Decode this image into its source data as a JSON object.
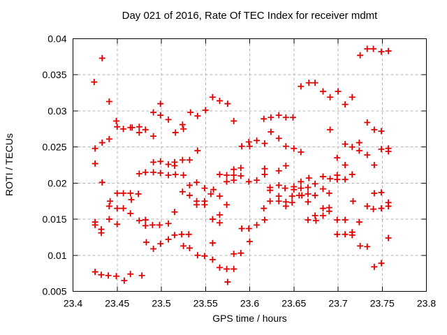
{
  "chart_data": {
    "type": "scatter",
    "title": "Day 021 of 2016, Rate Of TEC Index for receiver mdmt",
    "xlabel": "GPS time / hours",
    "ylabel": "ROTI / TECUs",
    "xlim": [
      23.4,
      23.8
    ],
    "ylim": [
      0.005,
      0.04
    ],
    "xticks": [
      {
        "v": 23.4,
        "label": "23.4"
      },
      {
        "v": 23.45,
        "label": "23.45"
      },
      {
        "v": 23.5,
        "label": "23.5"
      },
      {
        "v": 23.55,
        "label": "23.55"
      },
      {
        "v": 23.6,
        "label": "23.6"
      },
      {
        "v": 23.65,
        "label": "23.65"
      },
      {
        "v": 23.7,
        "label": "23.7"
      },
      {
        "v": 23.75,
        "label": "23.75"
      },
      {
        "v": 23.8,
        "label": "23.8"
      }
    ],
    "yticks": [
      {
        "v": 0.005,
        "label": "0.005"
      },
      {
        "v": 0.01,
        "label": "0.01"
      },
      {
        "v": 0.015,
        "label": "0.015"
      },
      {
        "v": 0.02,
        "label": "0.02"
      },
      {
        "v": 0.025,
        "label": "0.025"
      },
      {
        "v": 0.03,
        "label": "0.03"
      },
      {
        "v": 0.035,
        "label": "0.035"
      },
      {
        "v": 0.04,
        "label": "0.04"
      }
    ],
    "grid": true,
    "legend": false,
    "marker": {
      "shape": "plus",
      "color": "#e00000",
      "size": 9
    },
    "points": [
      [
        23.433,
        0.0373
      ],
      [
        23.424,
        0.034
      ],
      [
        23.441,
        0.0313
      ],
      [
        23.499,
        0.031
      ],
      [
        23.491,
        0.0298
      ],
      [
        23.499,
        0.0294
      ],
      [
        23.449,
        0.0286
      ],
      [
        23.508,
        0.0288
      ],
      [
        23.533,
        0.0298
      ],
      [
        23.541,
        0.0293
      ],
      [
        23.55,
        0.0301
      ],
      [
        23.558,
        0.0319
      ],
      [
        23.566,
        0.0314
      ],
      [
        23.575,
        0.031
      ],
      [
        23.582,
        0.0286
      ],
      [
        23.658,
        0.0334
      ],
      [
        23.667,
        0.0339
      ],
      [
        23.674,
        0.0339
      ],
      [
        23.683,
        0.0327
      ],
      [
        23.691,
        0.0319
      ],
      [
        23.7,
        0.0327
      ],
      [
        23.616,
        0.0289
      ],
      [
        23.624,
        0.0291
      ],
      [
        23.633,
        0.0294
      ],
      [
        23.641,
        0.0291
      ],
      [
        23.649,
        0.0291
      ],
      [
        23.725,
        0.0377
      ],
      [
        23.733,
        0.0386
      ],
      [
        23.74,
        0.0386
      ],
      [
        23.749,
        0.0382
      ],
      [
        23.757,
        0.0383
      ],
      [
        23.716,
        0.0319
      ],
      [
        23.708,
        0.0309
      ],
      [
        23.45,
        0.0278
      ],
      [
        23.457,
        0.0275
      ],
      [
        23.465,
        0.0277
      ],
      [
        23.467,
        0.0277
      ],
      [
        23.475,
        0.0278
      ],
      [
        23.475,
        0.027
      ],
      [
        23.482,
        0.0274
      ],
      [
        23.491,
        0.0265
      ],
      [
        23.441,
        0.0261
      ],
      [
        23.433,
        0.0256
      ],
      [
        23.425,
        0.0248
      ],
      [
        23.425,
        0.0227
      ],
      [
        23.491,
        0.0229
      ],
      [
        23.499,
        0.023
      ],
      [
        23.475,
        0.0213
      ],
      [
        23.482,
        0.0215
      ],
      [
        23.491,
        0.0215
      ],
      [
        23.499,
        0.0214
      ],
      [
        23.433,
        0.0201
      ],
      [
        23.45,
        0.0186
      ],
      [
        23.457,
        0.0186
      ],
      [
        23.465,
        0.0186
      ],
      [
        23.474,
        0.0185
      ],
      [
        23.466,
        0.0177
      ],
      [
        23.442,
        0.0175
      ],
      [
        23.441,
        0.0168
      ],
      [
        23.457,
        0.0165
      ],
      [
        23.524,
        0.0281
      ],
      [
        23.516,
        0.027
      ],
      [
        23.525,
        0.0275
      ],
      [
        23.591,
        0.0251
      ],
      [
        23.599,
        0.0257
      ],
      [
        23.6,
        0.0251
      ],
      [
        23.541,
        0.0245
      ],
      [
        23.508,
        0.0226
      ],
      [
        23.515,
        0.0229
      ],
      [
        23.515,
        0.0224
      ],
      [
        23.524,
        0.0232
      ],
      [
        23.532,
        0.0232
      ],
      [
        23.508,
        0.0211
      ],
      [
        23.516,
        0.0212
      ],
      [
        23.525,
        0.0211
      ],
      [
        23.566,
        0.0212
      ],
      [
        23.574,
        0.0211
      ],
      [
        23.582,
        0.0219
      ],
      [
        23.582,
        0.0211
      ],
      [
        23.59,
        0.0221
      ],
      [
        23.59,
        0.021
      ],
      [
        23.574,
        0.0202
      ],
      [
        23.582,
        0.0204
      ],
      [
        23.599,
        0.0202
      ],
      [
        23.532,
        0.0197
      ],
      [
        23.54,
        0.0201
      ],
      [
        23.549,
        0.0193
      ],
      [
        23.559,
        0.0191
      ],
      [
        23.524,
        0.0188
      ],
      [
        23.556,
        0.0185
      ],
      [
        23.532,
        0.0183
      ],
      [
        23.566,
        0.0182
      ],
      [
        23.54,
        0.0175
      ],
      [
        23.54,
        0.017
      ],
      [
        23.549,
        0.0175
      ],
      [
        23.549,
        0.017
      ],
      [
        23.574,
        0.017
      ],
      [
        23.624,
        0.0271
      ],
      [
        23.633,
        0.0262
      ],
      [
        23.691,
        0.0274
      ],
      [
        23.608,
        0.0259
      ],
      [
        23.617,
        0.0255
      ],
      [
        23.641,
        0.0251
      ],
      [
        23.65,
        0.0248
      ],
      [
        23.658,
        0.0243
      ],
      [
        23.699,
        0.0235
      ],
      [
        23.641,
        0.0224
      ],
      [
        23.617,
        0.022
      ],
      [
        23.633,
        0.0217
      ],
      [
        23.617,
        0.0212
      ],
      [
        23.683,
        0.0209
      ],
      [
        23.691,
        0.0206
      ],
      [
        23.699,
        0.0211
      ],
      [
        23.699,
        0.0205
      ],
      [
        23.608,
        0.0204
      ],
      [
        23.633,
        0.0197
      ],
      [
        23.658,
        0.0202
      ],
      [
        23.667,
        0.0207
      ],
      [
        23.674,
        0.0199
      ],
      [
        23.623,
        0.0194
      ],
      [
        23.623,
        0.019
      ],
      [
        23.64,
        0.0193
      ],
      [
        23.65,
        0.0195
      ],
      [
        23.65,
        0.0191
      ],
      [
        23.658,
        0.0193
      ],
      [
        23.666,
        0.0194
      ],
      [
        23.683,
        0.0192
      ],
      [
        23.69,
        0.0186
      ],
      [
        23.648,
        0.0182
      ],
      [
        23.656,
        0.0183
      ],
      [
        23.659,
        0.0183
      ],
      [
        23.666,
        0.0185
      ],
      [
        23.674,
        0.0183
      ],
      [
        23.633,
        0.0182
      ],
      [
        23.623,
        0.0175
      ],
      [
        23.633,
        0.0175
      ],
      [
        23.641,
        0.0174
      ],
      [
        23.648,
        0.0173
      ],
      [
        23.641,
        0.0168
      ],
      [
        23.666,
        0.0174
      ],
      [
        23.733,
        0.0284
      ],
      [
        23.741,
        0.0274
      ],
      [
        23.749,
        0.0272
      ],
      [
        23.708,
        0.0254
      ],
      [
        23.716,
        0.025
      ],
      [
        23.724,
        0.0256
      ],
      [
        23.724,
        0.0245
      ],
      [
        23.733,
        0.0239
      ],
      [
        23.749,
        0.0247
      ],
      [
        23.757,
        0.0248
      ],
      [
        23.757,
        0.0244
      ],
      [
        23.708,
        0.0225
      ],
      [
        23.741,
        0.0225
      ],
      [
        23.716,
        0.0212
      ],
      [
        23.708,
        0.0205
      ],
      [
        23.741,
        0.0186
      ],
      [
        23.749,
        0.0187
      ],
      [
        23.717,
        0.0175
      ],
      [
        23.757,
        0.0173
      ],
      [
        23.757,
        0.0168
      ],
      [
        23.45,
        0.0165
      ],
      [
        23.465,
        0.0158
      ],
      [
        23.425,
        0.0146
      ],
      [
        23.425,
        0.0142
      ],
      [
        23.441,
        0.015
      ],
      [
        23.432,
        0.0136
      ],
      [
        23.432,
        0.0131
      ],
      [
        23.45,
        0.0143
      ],
      [
        23.475,
        0.0148
      ],
      [
        23.482,
        0.0149
      ],
      [
        23.482,
        0.0141
      ],
      [
        23.49,
        0.0142
      ],
      [
        23.498,
        0.0142
      ],
      [
        23.483,
        0.0118
      ],
      [
        23.491,
        0.0109
      ],
      [
        23.499,
        0.0116
      ],
      [
        23.425,
        0.0077
      ],
      [
        23.432,
        0.0073
      ],
      [
        23.44,
        0.0072
      ],
      [
        23.449,
        0.0071
      ],
      [
        23.458,
        0.0065
      ],
      [
        23.465,
        0.0074
      ],
      [
        23.478,
        0.0072
      ],
      [
        23.515,
        0.016
      ],
      [
        23.508,
        0.0144
      ],
      [
        23.566,
        0.0156
      ],
      [
        23.558,
        0.015
      ],
      [
        23.566,
        0.0145
      ],
      [
        23.508,
        0.0122
      ],
      [
        23.515,
        0.0128
      ],
      [
        23.523,
        0.0129
      ],
      [
        23.531,
        0.0129
      ],
      [
        23.525,
        0.0113
      ],
      [
        23.532,
        0.011
      ],
      [
        23.558,
        0.0117
      ],
      [
        23.541,
        0.01
      ],
      [
        23.549,
        0.0099
      ],
      [
        23.558,
        0.0094
      ],
      [
        23.582,
        0.0102
      ],
      [
        23.59,
        0.0103
      ],
      [
        23.566,
        0.0083
      ],
      [
        23.574,
        0.0081
      ],
      [
        23.582,
        0.0081
      ],
      [
        23.575,
        0.0063
      ],
      [
        23.591,
        0.0137
      ],
      [
        23.599,
        0.0137
      ],
      [
        23.6,
        0.0119
      ],
      [
        23.616,
        0.0165
      ],
      [
        23.617,
        0.0149
      ],
      [
        23.608,
        0.0142
      ],
      [
        23.666,
        0.0149
      ],
      [
        23.674,
        0.0155
      ],
      [
        23.675,
        0.0148
      ],
      [
        23.683,
        0.0165
      ],
      [
        23.69,
        0.0166
      ],
      [
        23.69,
        0.0161
      ],
      [
        23.683,
        0.0155
      ],
      [
        23.699,
        0.0149
      ],
      [
        23.699,
        0.0129
      ],
      [
        23.733,
        0.0168
      ],
      [
        23.74,
        0.0164
      ],
      [
        23.749,
        0.0165
      ],
      [
        23.708,
        0.0149
      ],
      [
        23.724,
        0.0146
      ],
      [
        23.708,
        0.0129
      ],
      [
        23.716,
        0.0132
      ],
      [
        23.716,
        0.0128
      ],
      [
        23.757,
        0.0124
      ],
      [
        23.725,
        0.0113
      ],
      [
        23.733,
        0.0112
      ],
      [
        23.741,
        0.0084
      ],
      [
        23.749,
        0.0089
      ]
    ]
  },
  "style": {
    "marker_color": "#e00000",
    "grid_color": "#b4b4b4",
    "border_color": "#000000",
    "background_color": "#ffffff"
  }
}
